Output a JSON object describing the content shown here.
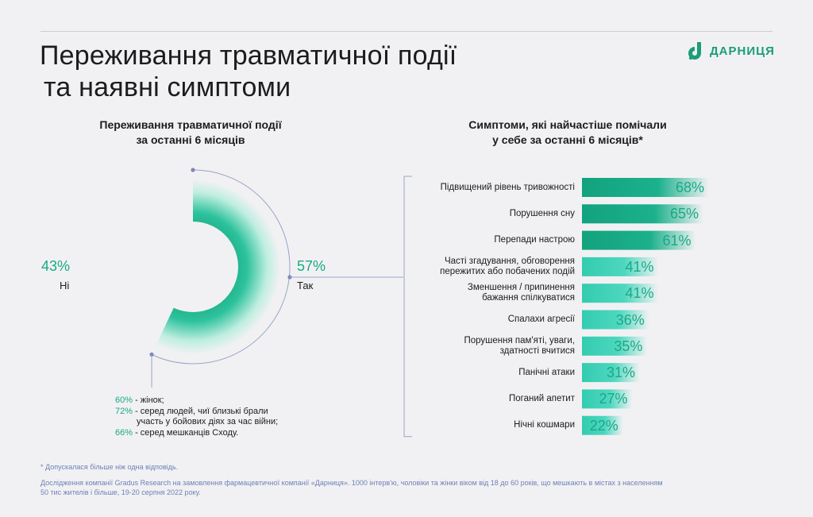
{
  "header": {
    "title_line1": "Переживання травматичної події",
    "title_line2": "та наявні симптоми",
    "brand": "ДАРНИЦЯ",
    "brand_icon": "darnytsia-logo-icon"
  },
  "left_chart": {
    "title_line1": "Переживання травматичної події",
    "title_line2": "за останні 6 місяців",
    "no_pct": "43%",
    "no_label": "Ні",
    "yes_pct": "57%",
    "yes_label": "Так",
    "notes": [
      {
        "pct": "60%",
        "text": " - жінок;"
      },
      {
        "pct": "72%",
        "text": " - серед людей, чиї близькі брали"
      },
      {
        "pct": "",
        "text": "участь у бойових діях за час війни;"
      },
      {
        "pct": "66%",
        "text": " - серед мешканців Сходу."
      }
    ]
  },
  "right_chart": {
    "title_line1": "Симптоми, які найчастіше помічали",
    "title_line2": "у себе за останні 6 місяців*"
  },
  "chart_data": [
    {
      "type": "pie",
      "categories": [
        "Так",
        "Ні"
      ],
      "values": [
        57,
        43
      ],
      "colors": {
        "accent": "#19a985",
        "accent_light": "#35cfb4"
      }
    },
    {
      "type": "bar",
      "orientation": "horizontal",
      "categories": [
        "Підвищений рівень тривожності",
        "Порушення сну",
        "Перепади настрою",
        "Часті згадування, обговорення пережитих або побачених подій",
        "Зменшення / припинення бажання спілкуватися",
        "Спалахи агресії",
        "Порушення пам'яті, уваги, здатності вчитися",
        "Панічні атаки",
        "Поганий апетит",
        "Нічні кошмари"
      ],
      "label_lines": [
        [
          "Підвищений рівень тривожності"
        ],
        [
          "Порушення сну"
        ],
        [
          "Перепади настрою"
        ],
        [
          "Часті згадування, обговорення",
          "пережитих або побачених подій"
        ],
        [
          "Зменшення / припинення",
          "бажання спілкуватися"
        ],
        [
          "Спалахи агресії"
        ],
        [
          "Порушення пам'яті, уваги,",
          "здатності вчитися"
        ],
        [
          "Панічні атаки"
        ],
        [
          "Поганий апетит"
        ],
        [
          "Нічні кошмари"
        ]
      ],
      "values": [
        68,
        65,
        61,
        41,
        41,
        36,
        35,
        31,
        27,
        22
      ],
      "value_labels": [
        "68%",
        "65%",
        "61%",
        "41%",
        "41%",
        "36%",
        "35%",
        "31%",
        "27%",
        "22%"
      ],
      "unit": "%",
      "colors": {
        "top": "#13a27e",
        "rest": "#3dd0b6"
      }
    }
  ],
  "footnotes": {
    "note": "* Допускалася більше ніж одна відповідь.",
    "source_line1": "Дослідження компанії Gradus Research на замовлення фармацевтичної компанії «Дарниця». 1000 інтерв'ю, чоловіки та жінки віком від 18 до 60 років,  що мешкають в містах з населенням",
    "source_line2": "50 тис жителів і більше, 19-20 серпня 2022 року."
  }
}
